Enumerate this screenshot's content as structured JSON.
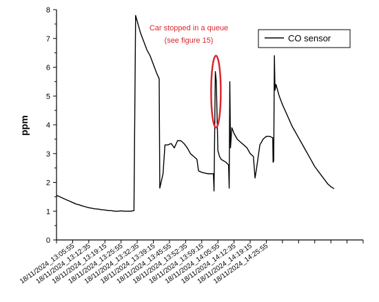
{
  "chart_data": {
    "type": "line",
    "title": "",
    "xlabel": "",
    "ylabel": "ppm",
    "ylim": [
      0,
      8
    ],
    "yticks": [
      0,
      1,
      2,
      3,
      4,
      5,
      6,
      7,
      8
    ],
    "xlim": [
      0,
      95
    ],
    "x_tick_labels": [
      "18/11/2024_13:05:55",
      "18/11/2024_13:12:35",
      "18/11/2024_13:19:15",
      "18/11/2024_13:25:55",
      "18/11/2024_13:32:35",
      "18/11/2024_13:39:15",
      "18/11/2024_13:45:55",
      "18/11/2024_13:52:35",
      "18/11/2024_13:59:15",
      "18/11/2024_14:05:55",
      "18/11/2024_14:12:35",
      "18/11/2024_14:19:15",
      "18/11/2024_14:25:55"
    ],
    "x_tick_positions": [
      5,
      10,
      15,
      20,
      25,
      30,
      35,
      40,
      45,
      50,
      55,
      60,
      65
    ],
    "grid": false,
    "legend_position": "top-right",
    "series": [
      {
        "name": "CO sensor",
        "color": "#000000",
        "points": [
          [
            0,
            1.55
          ],
          [
            1,
            1.5
          ],
          [
            2,
            1.45
          ],
          [
            3,
            1.4
          ],
          [
            4,
            1.35
          ],
          [
            5,
            1.3
          ],
          [
            6,
            1.25
          ],
          [
            7,
            1.22
          ],
          [
            8,
            1.18
          ],
          [
            9,
            1.15
          ],
          [
            10,
            1.12
          ],
          [
            11,
            1.1
          ],
          [
            12,
            1.08
          ],
          [
            13,
            1.07
          ],
          [
            14,
            1.05
          ],
          [
            15,
            1.04
          ],
          [
            16,
            1.02
          ],
          [
            17,
            1.02
          ],
          [
            18,
            1.0
          ],
          [
            19,
            1.0
          ],
          [
            20,
            1.01
          ],
          [
            21,
            1.0
          ],
          [
            22,
            1.0
          ],
          [
            23,
            1.0
          ],
          [
            24,
            1.02
          ],
          [
            24.5,
            7.8
          ],
          [
            25,
            7.6
          ],
          [
            26,
            7.2
          ],
          [
            27,
            6.9
          ],
          [
            28,
            6.6
          ],
          [
            29,
            6.4
          ],
          [
            30,
            6.1
          ],
          [
            31,
            5.8
          ],
          [
            31.8,
            5.6
          ],
          [
            32,
            1.8
          ],
          [
            33,
            2.3
          ],
          [
            33.6,
            3.3
          ],
          [
            34.5,
            3.3
          ],
          [
            35.5,
            3.35
          ],
          [
            36.5,
            3.2
          ],
          [
            37.5,
            3.45
          ],
          [
            38.5,
            3.45
          ],
          [
            39.5,
            3.35
          ],
          [
            40.5,
            3.2
          ],
          [
            41.5,
            3.0
          ],
          [
            42.5,
            2.9
          ],
          [
            43.5,
            2.8
          ],
          [
            44,
            2.4
          ],
          [
            45,
            2.35
          ],
          [
            46,
            2.32
          ],
          [
            47,
            2.3
          ],
          [
            48,
            2.3
          ],
          [
            48.6,
            2.3
          ],
          [
            48.8,
            1.7
          ],
          [
            49.2,
            5.85
          ],
          [
            49.5,
            5.5
          ],
          [
            50,
            3.1
          ],
          [
            50.5,
            2.9
          ],
          [
            51,
            2.8
          ],
          [
            52.5,
            2.7
          ],
          [
            53.3,
            2.6
          ],
          [
            53.5,
            1.8
          ],
          [
            53.7,
            5.5
          ],
          [
            53.9,
            3.2
          ],
          [
            54.3,
            3.9
          ],
          [
            55,
            3.7
          ],
          [
            56,
            3.5
          ],
          [
            57,
            3.4
          ],
          [
            58,
            3.3
          ],
          [
            59,
            3.2
          ],
          [
            60,
            3.0
          ],
          [
            61,
            2.9
          ],
          [
            61.5,
            2.15
          ],
          [
            62,
            2.5
          ],
          [
            63,
            3.3
          ],
          [
            64,
            3.5
          ],
          [
            65,
            3.6
          ],
          [
            66,
            3.6
          ],
          [
            67,
            3.55
          ],
          [
            67.1,
            2.7
          ],
          [
            67.3,
            2.75
          ],
          [
            67.5,
            6.4
          ],
          [
            67.7,
            5.2
          ],
          [
            68,
            5.4
          ],
          [
            69,
            5.0
          ],
          [
            70,
            4.7
          ],
          [
            71,
            4.45
          ],
          [
            72,
            4.2
          ],
          [
            73,
            3.95
          ],
          [
            74,
            3.75
          ],
          [
            75,
            3.55
          ],
          [
            76,
            3.35
          ],
          [
            77,
            3.15
          ],
          [
            78,
            2.95
          ],
          [
            79,
            2.75
          ],
          [
            80,
            2.55
          ],
          [
            81,
            2.4
          ],
          [
            82,
            2.25
          ],
          [
            83,
            2.1
          ],
          [
            84,
            1.95
          ],
          [
            85,
            1.85
          ],
          [
            86,
            1.78
          ]
        ]
      }
    ],
    "annotations": [
      {
        "text_lines": [
          "Car stopped in a queue",
          "(see figure 15)"
        ],
        "color": "#d9272e",
        "highlight_x": 49.4,
        "highlight_y_range": [
          3.9,
          6.4
        ]
      }
    ]
  }
}
